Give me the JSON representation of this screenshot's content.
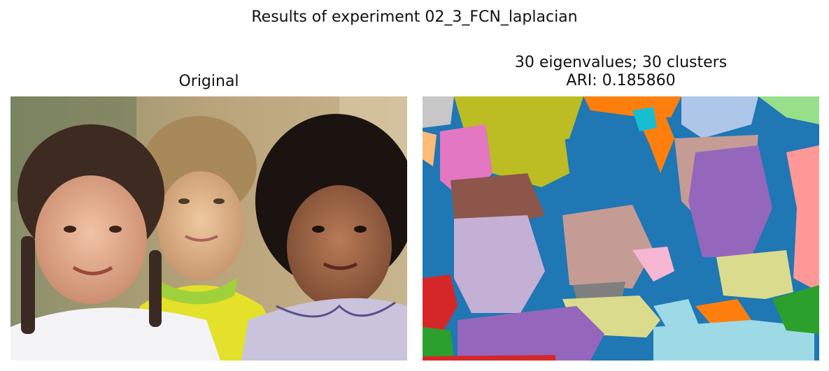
{
  "figure": {
    "suptitle": "Results of experiment 02_3_FCN_laplacian",
    "panels": [
      {
        "title_line1": "Original"
      },
      {
        "title_line1": "30 eigenvalues; 30 clusters",
        "title_line2": "ARI: 0.185860"
      }
    ]
  },
  "palette": {
    "tab_blue": "#1f77b4",
    "tab_orange": "#ff7f0e",
    "tab_green": "#2ca02c",
    "tab_red": "#d62728",
    "tab_purple": "#9467bd",
    "tab_brown": "#8c564b",
    "tab_pink": "#e377c2",
    "tab_gray": "#7f7f7f",
    "tab_olive": "#bcbd22",
    "tab_cyan": "#17becf",
    "light_blue": "#aec7e8",
    "light_orange": "#ffbb78",
    "light_green": "#98df8a",
    "light_red": "#ff9896",
    "light_purple": "#c5b0d5",
    "light_brown": "#c49c94",
    "light_pink": "#f7b6d2",
    "light_gray": "#c7c7c7",
    "light_olive": "#dbdb8d",
    "light_cyan": "#9edae5"
  }
}
